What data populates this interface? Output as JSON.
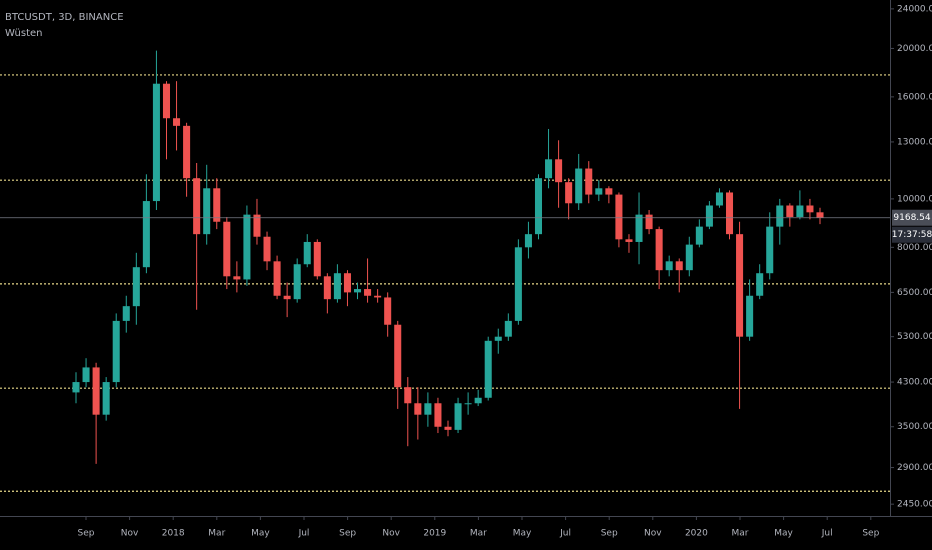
{
  "chart_data": {
    "type": "candlestick",
    "title": "BTCUSDT, 3D, BINANCE",
    "subtitle": "Wüsten",
    "log_scale": true,
    "ylim": [
      2320,
      25000
    ],
    "yticks": [
      {
        "value": 2450,
        "label": "2450.00"
      },
      {
        "value": 2900,
        "label": "2900.00"
      },
      {
        "value": 3500,
        "label": "3500.00"
      },
      {
        "value": 4300,
        "label": "4300.00"
      },
      {
        "value": 5300,
        "label": "5300.00"
      },
      {
        "value": 6500,
        "label": "6500.00"
      },
      {
        "value": 8000,
        "label": "8000.00"
      },
      {
        "value": 10000,
        "label": "10000.00"
      },
      {
        "value": 13000,
        "label": "13000.00"
      },
      {
        "value": 16000,
        "label": "16000.00"
      },
      {
        "value": 20000,
        "label": "20000.00"
      },
      {
        "value": 24000,
        "label": "24000.00"
      }
    ],
    "xtick_labels": [
      "Sep",
      "Nov",
      "2018",
      "Mar",
      "May",
      "Jul",
      "Sep",
      "Nov",
      "2019",
      "Mar",
      "May",
      "Jul",
      "Sep",
      "Nov",
      "2020",
      "Mar",
      "May",
      "Jul",
      "Sep"
    ],
    "up_color": "#26a69a",
    "down_color": "#ef5350",
    "levels": [
      17700,
      10900,
      6760,
      4180,
      2600
    ],
    "levels_color": "#e8d98a",
    "countdown": "17:37:58",
    "open": [
      4100,
      4300,
      4600,
      3700,
      4300,
      5700,
      6100,
      7300,
      9900,
      17000,
      14500,
      14000,
      11000,
      8500,
      10500,
      9000,
      7000,
      6900,
      9300,
      8400,
      7500,
      6400,
      6300,
      7400,
      8200,
      7000,
      6300,
      7100,
      6500,
      6600,
      6400,
      6350,
      5600,
      4200,
      3900,
      3700,
      3900,
      3500,
      3450,
      3900,
      3900,
      4000,
      5200,
      5300,
      5700,
      8000,
      8500,
      11000,
      12000,
      10800,
      9800,
      11500,
      10200,
      10500,
      10200,
      8300,
      8200,
      9300,
      8700,
      7200,
      7500,
      7200,
      8100,
      8800,
      9700,
      10300,
      8500,
      5300,
      6400,
      7100,
      8800,
      9700,
      9200,
      9700,
      9400
    ],
    "high": [
      4500,
      4800,
      4700,
      4400,
      5900,
      6400,
      7800,
      11200,
      19800,
      17200,
      17200,
      14200,
      11800,
      11700,
      11000,
      9200,
      7500,
      9700,
      10000,
      8600,
      7700,
      6800,
      7600,
      8500,
      8300,
      7100,
      7400,
      7200,
      6800,
      7600,
      6600,
      6500,
      5700,
      4400,
      4200,
      4100,
      4000,
      3600,
      4000,
      4100,
      4150,
      5300,
      5500,
      5900,
      8300,
      9000,
      11200,
      13800,
      13100,
      11000,
      12300,
      11900,
      10900,
      10600,
      10300,
      8500,
      10300,
      9500,
      8800,
      7700,
      7600,
      8400,
      9100,
      9900,
      10500,
      10400,
      9000,
      6900,
      7400,
      9400,
      10000,
      9800,
      10400,
      10000,
      9600
    ],
    "low": [
      3900,
      4200,
      2950,
      3600,
      4200,
      5400,
      5600,
      7100,
      9500,
      12000,
      12500,
      10100,
      6000,
      8100,
      8700,
      6600,
      6500,
      6700,
      8100,
      7200,
      6300,
      5800,
      6200,
      7300,
      6900,
      5900,
      6200,
      6100,
      6300,
      6200,
      6200,
      5300,
      3800,
      3200,
      3300,
      3500,
      3400,
      3350,
      3400,
      3700,
      3850,
      3950,
      4900,
      5200,
      5600,
      7600,
      8300,
      10500,
      9600,
      9100,
      9500,
      9800,
      9900,
      9800,
      8000,
      7800,
      7400,
      8500,
      6600,
      7000,
      6500,
      7000,
      8000,
      8700,
      9600,
      8300,
      3800,
      5200,
      6300,
      6900,
      8100,
      8800,
      9100,
      9100,
      8900
    ],
    "close": [
      4300,
      4600,
      3700,
      4300,
      5700,
      6100,
      7300,
      9900,
      17000,
      14500,
      14000,
      11000,
      8500,
      10500,
      9000,
      7000,
      6900,
      9300,
      8400,
      7500,
      6400,
      6300,
      7400,
      8200,
      7000,
      6300,
      7100,
      6500,
      6600,
      6400,
      6350,
      5600,
      4200,
      3900,
      3700,
      3900,
      3500,
      3450,
      3900,
      3900,
      4000,
      5200,
      5300,
      5700,
      8000,
      8500,
      11000,
      12000,
      10800,
      9800,
      11500,
      10200,
      10500,
      10200,
      8300,
      8200,
      9300,
      8700,
      7200,
      7500,
      7200,
      8100,
      8800,
      9700,
      10300,
      8500,
      5300,
      6400,
      7100,
      8800,
      9700,
      9200,
      9700,
      9400,
      9168.54
    ]
  }
}
